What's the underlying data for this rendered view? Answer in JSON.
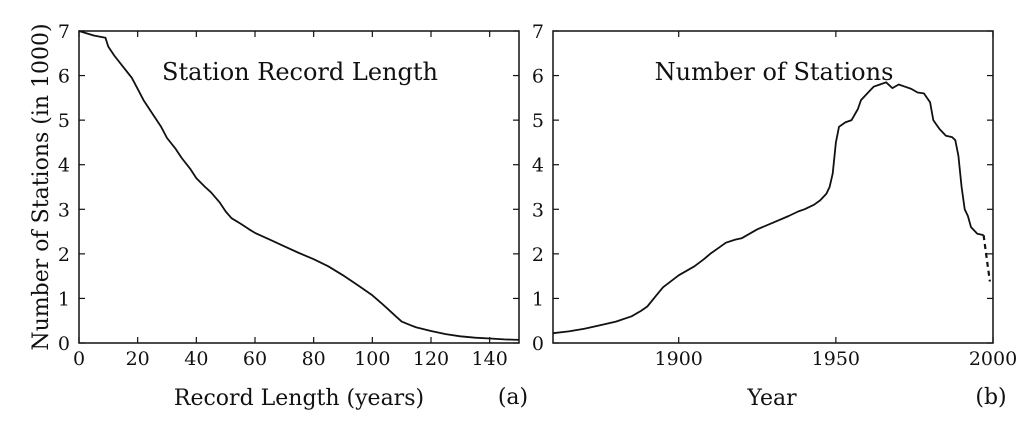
{
  "chart_data": [
    {
      "type": "line",
      "title": "Station Record Length",
      "panel_label": "(a)",
      "xlabel": "Record Length (years)",
      "ylabel": "Number of Stations (in 1000)",
      "xlim": [
        0,
        150
      ],
      "ylim": [
        0,
        7
      ],
      "xticks": [
        "0",
        "20",
        "40",
        "60",
        "80",
        "100",
        "120",
        "140"
      ],
      "xtick_values": [
        0,
        20,
        40,
        60,
        80,
        100,
        120,
        140
      ],
      "yticks": [
        "0",
        "1",
        "2",
        "3",
        "4",
        "5",
        "6",
        "7"
      ],
      "ytick_values": [
        0,
        1,
        2,
        3,
        4,
        5,
        6,
        7
      ],
      "grid": false,
      "series": [
        {
          "x": [
            0,
            5,
            9,
            10,
            12,
            15,
            18,
            20,
            22,
            25,
            28,
            30,
            33,
            35,
            38,
            40,
            43,
            45,
            48,
            50,
            52,
            55,
            58,
            60,
            65,
            70,
            75,
            80,
            85,
            90,
            95,
            100,
            103,
            105,
            108,
            110,
            113,
            115,
            120,
            125,
            130,
            135,
            140,
            145,
            150
          ],
          "y": [
            7.0,
            6.9,
            6.85,
            6.65,
            6.45,
            6.2,
            5.95,
            5.7,
            5.45,
            5.15,
            4.85,
            4.6,
            4.35,
            4.15,
            3.9,
            3.7,
            3.5,
            3.38,
            3.15,
            2.95,
            2.8,
            2.68,
            2.55,
            2.47,
            2.32,
            2.17,
            2.02,
            1.88,
            1.72,
            1.52,
            1.3,
            1.07,
            0.9,
            0.78,
            0.6,
            0.48,
            0.4,
            0.35,
            0.27,
            0.2,
            0.15,
            0.12,
            0.1,
            0.08,
            0.07
          ]
        }
      ]
    },
    {
      "type": "line",
      "title": "Number of Stations",
      "panel_label": "(b)",
      "xlabel": "Year",
      "ylabel": "",
      "xlim": [
        1860,
        2000
      ],
      "ylim": [
        0,
        7
      ],
      "xticks": [
        "1900",
        "1950",
        "2000"
      ],
      "xtick_values": [
        1900,
        1950,
        2000
      ],
      "yticks": [
        "0",
        "1",
        "2",
        "3",
        "4",
        "5",
        "6",
        "7"
      ],
      "ytick_values": [
        0,
        1,
        2,
        3,
        4,
        5,
        6,
        7
      ],
      "grid": false,
      "series": [
        {
          "style": "solid",
          "x": [
            1860,
            1865,
            1870,
            1875,
            1880,
            1885,
            1888,
            1890,
            1893,
            1895,
            1900,
            1905,
            1908,
            1910,
            1913,
            1915,
            1918,
            1920,
            1925,
            1930,
            1935,
            1938,
            1940,
            1943,
            1945,
            1947,
            1948,
            1949,
            1950,
            1951,
            1952,
            1953,
            1955,
            1957,
            1958,
            1960,
            1962,
            1964,
            1966,
            1968,
            1970,
            1972,
            1974,
            1976,
            1978,
            1980,
            1981,
            1982,
            1983,
            1985,
            1987,
            1988,
            1989,
            1990,
            1991,
            1992,
            1993,
            1995,
            1997
          ],
          "y": [
            0.22,
            0.26,
            0.32,
            0.4,
            0.48,
            0.6,
            0.72,
            0.82,
            1.08,
            1.25,
            1.52,
            1.72,
            1.88,
            2.0,
            2.15,
            2.25,
            2.32,
            2.35,
            2.55,
            2.7,
            2.85,
            2.95,
            3.0,
            3.1,
            3.2,
            3.35,
            3.5,
            3.8,
            4.5,
            4.85,
            4.9,
            4.95,
            5.0,
            5.25,
            5.45,
            5.6,
            5.75,
            5.8,
            5.85,
            5.72,
            5.8,
            5.75,
            5.7,
            5.62,
            5.6,
            5.4,
            5.0,
            4.9,
            4.8,
            4.65,
            4.62,
            4.55,
            4.2,
            3.5,
            3.0,
            2.85,
            2.6,
            2.45,
            2.42
          ]
        },
        {
          "style": "dashed",
          "x": [
            1997,
            1998,
            1999
          ],
          "y": [
            2.42,
            1.9,
            1.38
          ]
        }
      ]
    }
  ]
}
